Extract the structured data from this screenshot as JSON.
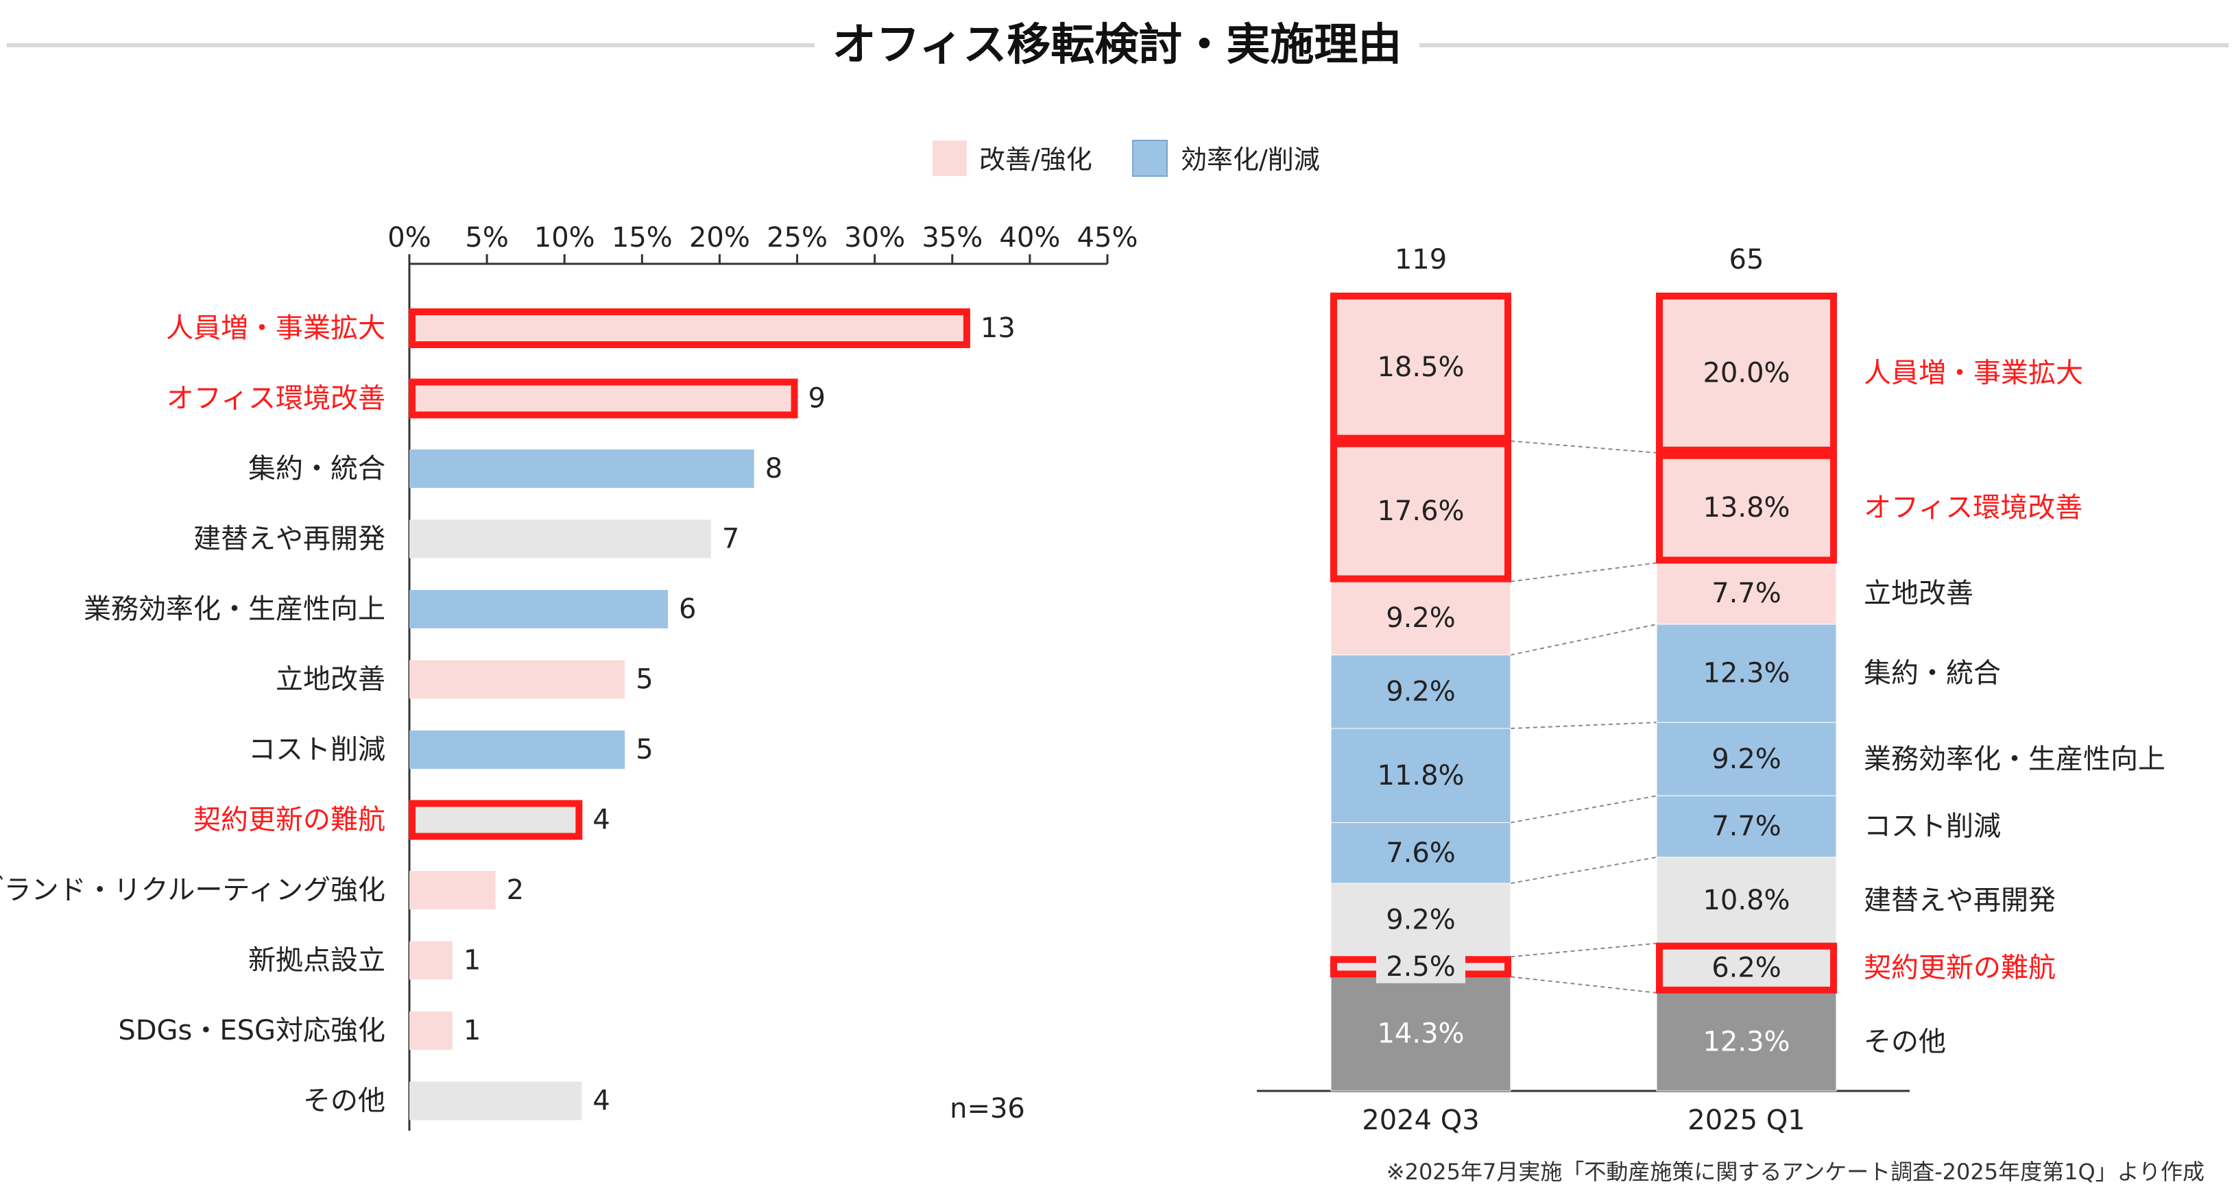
{
  "title": "オフィス移転検討・実施理由",
  "legend": [
    {
      "label": "改善/強化",
      "color": "#fadbda"
    },
    {
      "label": "効率化/削減",
      "color": "#9dc3e4"
    }
  ],
  "colors": {
    "improve": "#fadbda",
    "efficiency": "#9dc3e4",
    "neutral": "#e6e6e6",
    "other": "#969696",
    "highlight": "#ff1a1a",
    "axis": "#333333",
    "connector": "#888888"
  },
  "note_n": "n=36",
  "source_note": "※2025年7月実施「不動産施策に関するアンケート調査-2025年度第1Q」より作成",
  "chart_data": [
    {
      "type": "bar",
      "orientation": "horizontal",
      "ticks": [
        "0%",
        "5%",
        "10%",
        "15%",
        "20%",
        "25%",
        "30%",
        "35%",
        "40%",
        "45%"
      ],
      "xlim": [
        0,
        45
      ],
      "total": 36,
      "categories": [
        "人員増・事業拡大",
        "オフィス環境改善",
        "集約・統合",
        "建替えや再開発",
        "業務効率化・生産性向上",
        "立地改善",
        "コスト削減",
        "契約更新の難航",
        "ブランド・リクルーティング強化",
        "新拠点設立",
        "SDGs・ESG対応強化",
        "その他"
      ],
      "values": [
        13,
        9,
        8,
        7,
        6,
        5,
        5,
        4,
        2,
        1,
        1,
        4
      ],
      "group": [
        "improve",
        "improve",
        "efficiency",
        "neutral",
        "efficiency",
        "improve",
        "efficiency",
        "neutral",
        "improve",
        "improve",
        "improve",
        "neutral"
      ],
      "highlighted": [
        true,
        true,
        false,
        false,
        false,
        false,
        false,
        true,
        false,
        false,
        false,
        false
      ],
      "red_label": [
        true,
        true,
        false,
        false,
        false,
        false,
        false,
        true,
        false,
        false,
        false,
        false
      ]
    },
    {
      "type": "bar",
      "stacked": true,
      "normalized": true,
      "categories": [
        "2024 Q3",
        "2025 Q1"
      ],
      "totals": [
        "119",
        "65"
      ],
      "series": [
        {
          "name": "人員増・事業拡大",
          "values": [
            18.5,
            20.0
          ],
          "labels": [
            "18.5%",
            "20.0%"
          ],
          "group": "improve",
          "highlighted": true,
          "red_label": true
        },
        {
          "name": "オフィス環境改善",
          "values": [
            17.6,
            13.8
          ],
          "labels": [
            "17.6%",
            "13.8%"
          ],
          "group": "improve",
          "highlighted": true,
          "red_label": true
        },
        {
          "name": "立地改善",
          "values": [
            9.2,
            7.7
          ],
          "labels": [
            "9.2%",
            "7.7%"
          ],
          "group": "improve",
          "highlighted": false,
          "red_label": false
        },
        {
          "name": "集約・統合",
          "values": [
            9.2,
            12.3
          ],
          "labels": [
            "9.2%",
            "12.3%"
          ],
          "group": "efficiency",
          "highlighted": false,
          "red_label": false
        },
        {
          "name": "業務効率化・生産性向上",
          "values": [
            11.8,
            9.2
          ],
          "labels": [
            "11.8%",
            "9.2%"
          ],
          "group": "efficiency",
          "highlighted": false,
          "red_label": false
        },
        {
          "name": "コスト削減",
          "values": [
            7.6,
            7.7
          ],
          "labels": [
            "7.6%",
            "7.7%"
          ],
          "group": "efficiency",
          "highlighted": false,
          "red_label": false
        },
        {
          "name": "建替えや再開発",
          "values": [
            9.2,
            10.8
          ],
          "labels": [
            "9.2%",
            "10.8%"
          ],
          "group": "neutral",
          "highlighted": false,
          "red_label": false
        },
        {
          "name": "契約更新の難航",
          "values": [
            2.5,
            6.2
          ],
          "labels": [
            "2.5%",
            "6.2%"
          ],
          "group": "neutral",
          "highlighted": true,
          "red_label": true
        },
        {
          "name": "その他",
          "values": [
            14.3,
            12.3
          ],
          "labels": [
            "14.3%",
            "12.3%"
          ],
          "group": "other",
          "highlighted": false,
          "red_label": false
        }
      ]
    }
  ]
}
